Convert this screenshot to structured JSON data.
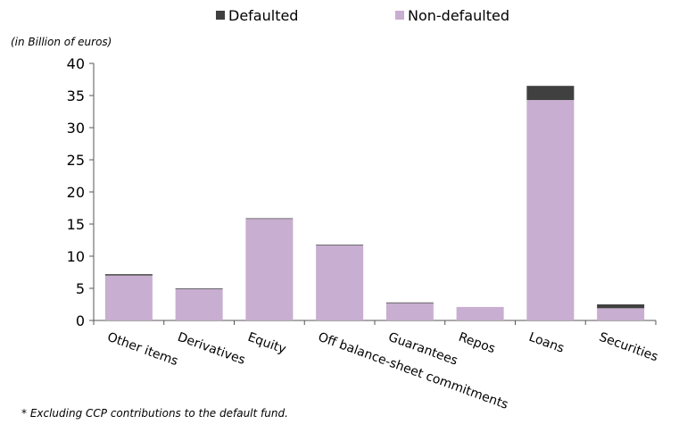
{
  "chart_data": {
    "type": "bar",
    "stacked": true,
    "categories": [
      "Other items",
      "Derivatives",
      "Equity",
      "Off balance-sheet commitments",
      "Guarantees",
      "Repos",
      "Loans",
      "Securities"
    ],
    "series": [
      {
        "name": "Non-defaulted",
        "values": [
          7.0,
          4.9,
          15.8,
          11.7,
          2.7,
          2.1,
          34.3,
          1.9
        ],
        "color": "#c8aed0"
      },
      {
        "name": "Defaulted",
        "values": [
          0.2,
          0.1,
          0.1,
          0.1,
          0.1,
          0.0,
          2.2,
          0.6
        ],
        "color": "#404040"
      }
    ],
    "legend_order": [
      "Defaulted",
      "Non-defaulted"
    ],
    "legend_position": "top-center",
    "unit_label": "(in Billion  of euros)",
    "ylim": [
      0,
      40
    ],
    "yticks": [
      0,
      5,
      10,
      15,
      20,
      25,
      30,
      35,
      40
    ],
    "ytick_labels": [
      "0",
      "5",
      "10",
      "15",
      "20",
      "25",
      "30",
      "35",
      "40"
    ],
    "grid": false,
    "footnote": "* Excluding CCP contributions to the default fund."
  }
}
